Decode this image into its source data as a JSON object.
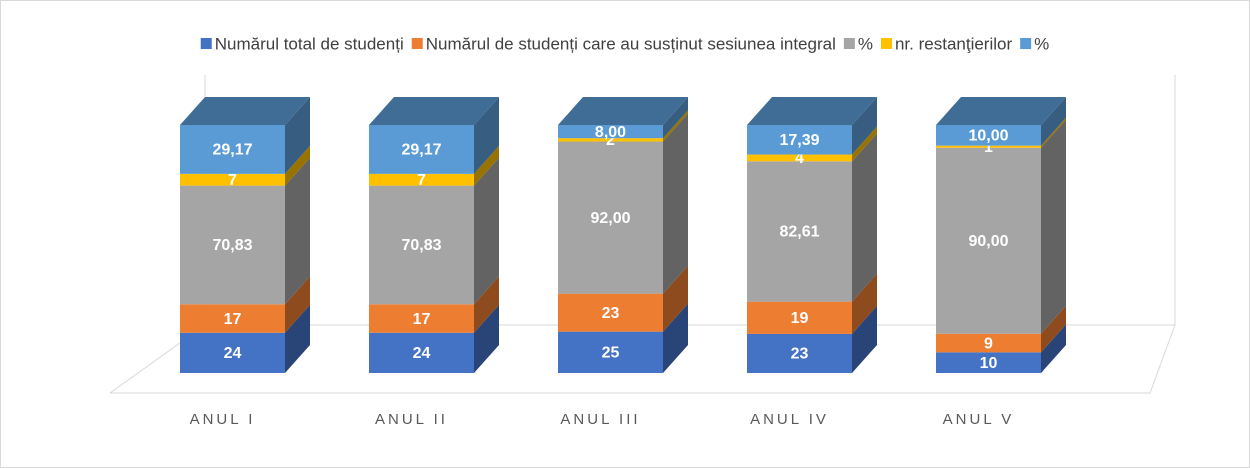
{
  "chart_data": {
    "type": "bar",
    "stacking": "percent",
    "categories": [
      "ANUL I",
      "ANUL II",
      "ANUL III",
      "ANUL IV",
      "ANUL V"
    ],
    "series": [
      {
        "name": "Numărul total de studenți",
        "color": "#4472c4",
        "values": [
          24,
          24,
          25,
          23,
          10
        ]
      },
      {
        "name": "Numărul de studenți care au susținut sesiunea integral",
        "color": "#ed7d31",
        "values": [
          17,
          17,
          23,
          19,
          9
        ]
      },
      {
        "name": "%",
        "color": "#a5a5a5",
        "values": [
          70.83,
          70.83,
          92.0,
          82.61,
          90.0
        ],
        "value_labels": [
          "70,83",
          "70,83",
          "92,00",
          "82,61",
          "90,00"
        ]
      },
      {
        "name": "nr. restanţierilor",
        "color": "#ffc000",
        "values": [
          7,
          7,
          2,
          4,
          1
        ]
      },
      {
        "name": "%",
        "color": "#5b9bd5",
        "values": [
          29.17,
          29.17,
          8.0,
          17.39,
          10.0
        ],
        "value_labels": [
          "29,17",
          "29,17",
          "8,00",
          "17,39",
          "10,00"
        ]
      }
    ]
  }
}
